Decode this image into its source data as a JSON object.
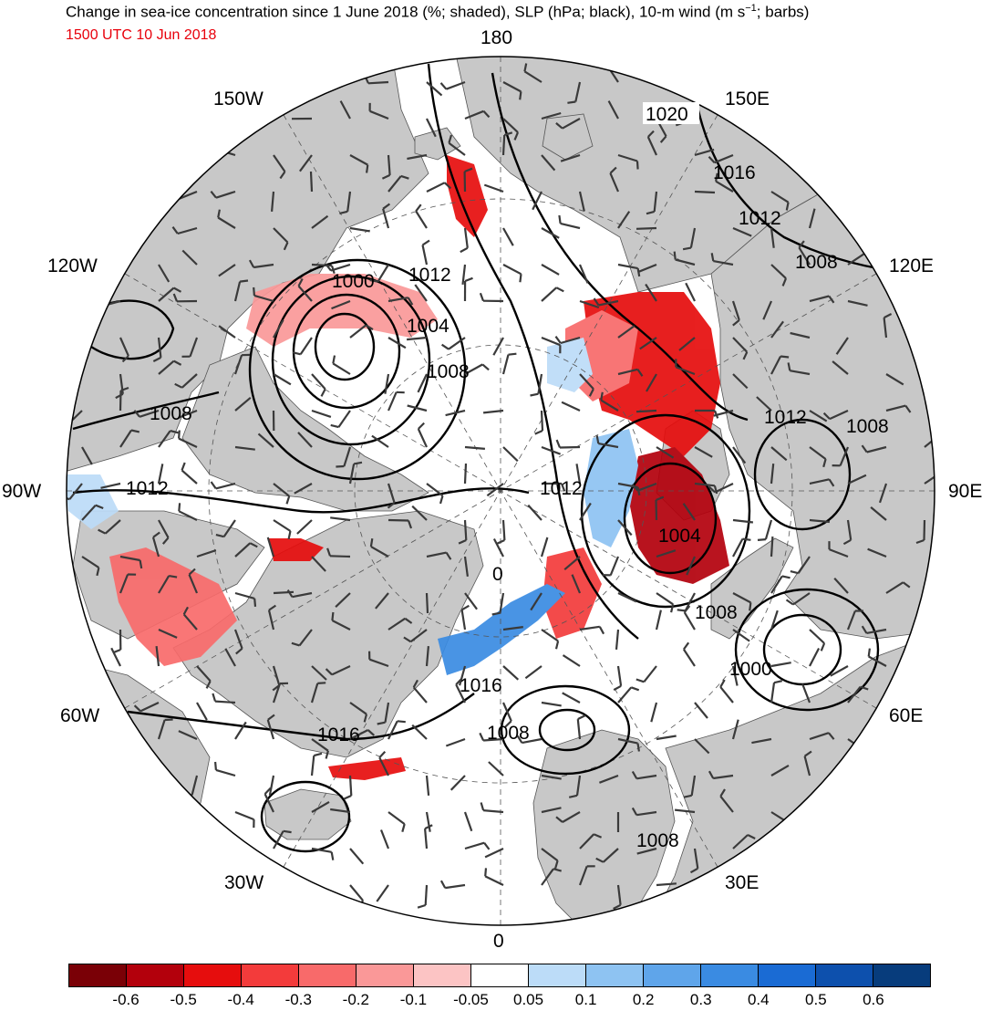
{
  "title": {
    "main_before": "Change in sea-ice concentration since 1 June 2018 (%; shaded), SLP (hPa; black), 10-m wind (m s",
    "superscript": "−1",
    "main_after": "; barbs)",
    "valid_time": "1500 UTC 10 Jun 2018",
    "valid_time_color": "#e8000b"
  },
  "longitude_labels": {
    "top": "180",
    "bottom": "0",
    "left": "90W",
    "right": "90E",
    "l150w": "150W",
    "l150e": "150E",
    "l120w": "120W",
    "l120e": "120E",
    "l60w": "60W",
    "l60e": "60E",
    "l30w": "30W",
    "l30e": "30E"
  },
  "slp_contour_labels": [
    "1020",
    "1016",
    "1012",
    "1008",
    "1000",
    "1012",
    "1004",
    "1008",
    "1008",
    "1012",
    "1012",
    "1012",
    "1008",
    "1004",
    "0",
    "1008",
    "1000",
    "1016",
    "1008",
    "1016",
    "1008"
  ],
  "colorbar": {
    "colors": [
      "#7a0006",
      "#b3000c",
      "#e60d0d",
      "#f33b3b",
      "#f86a6a",
      "#fa9898",
      "#fcc4c4",
      "#ffffff",
      "#bcdcf8",
      "#8ec3f2",
      "#5fa5ea",
      "#3a8be2",
      "#1a6bd4",
      "#0d50ad",
      "#073c7c"
    ],
    "tick_labels": [
      "-0.6",
      "-0.5",
      "-0.4",
      "-0.3",
      "-0.2",
      "-0.1",
      "-0.05",
      "0.05",
      "0.1",
      "0.2",
      "0.3",
      "0.4",
      "0.5",
      "0.6"
    ]
  },
  "map_colors": {
    "land": "#c8c8c8",
    "ocean": "#ffffff",
    "contour": "#000000",
    "barb": "#3a3a3a"
  }
}
